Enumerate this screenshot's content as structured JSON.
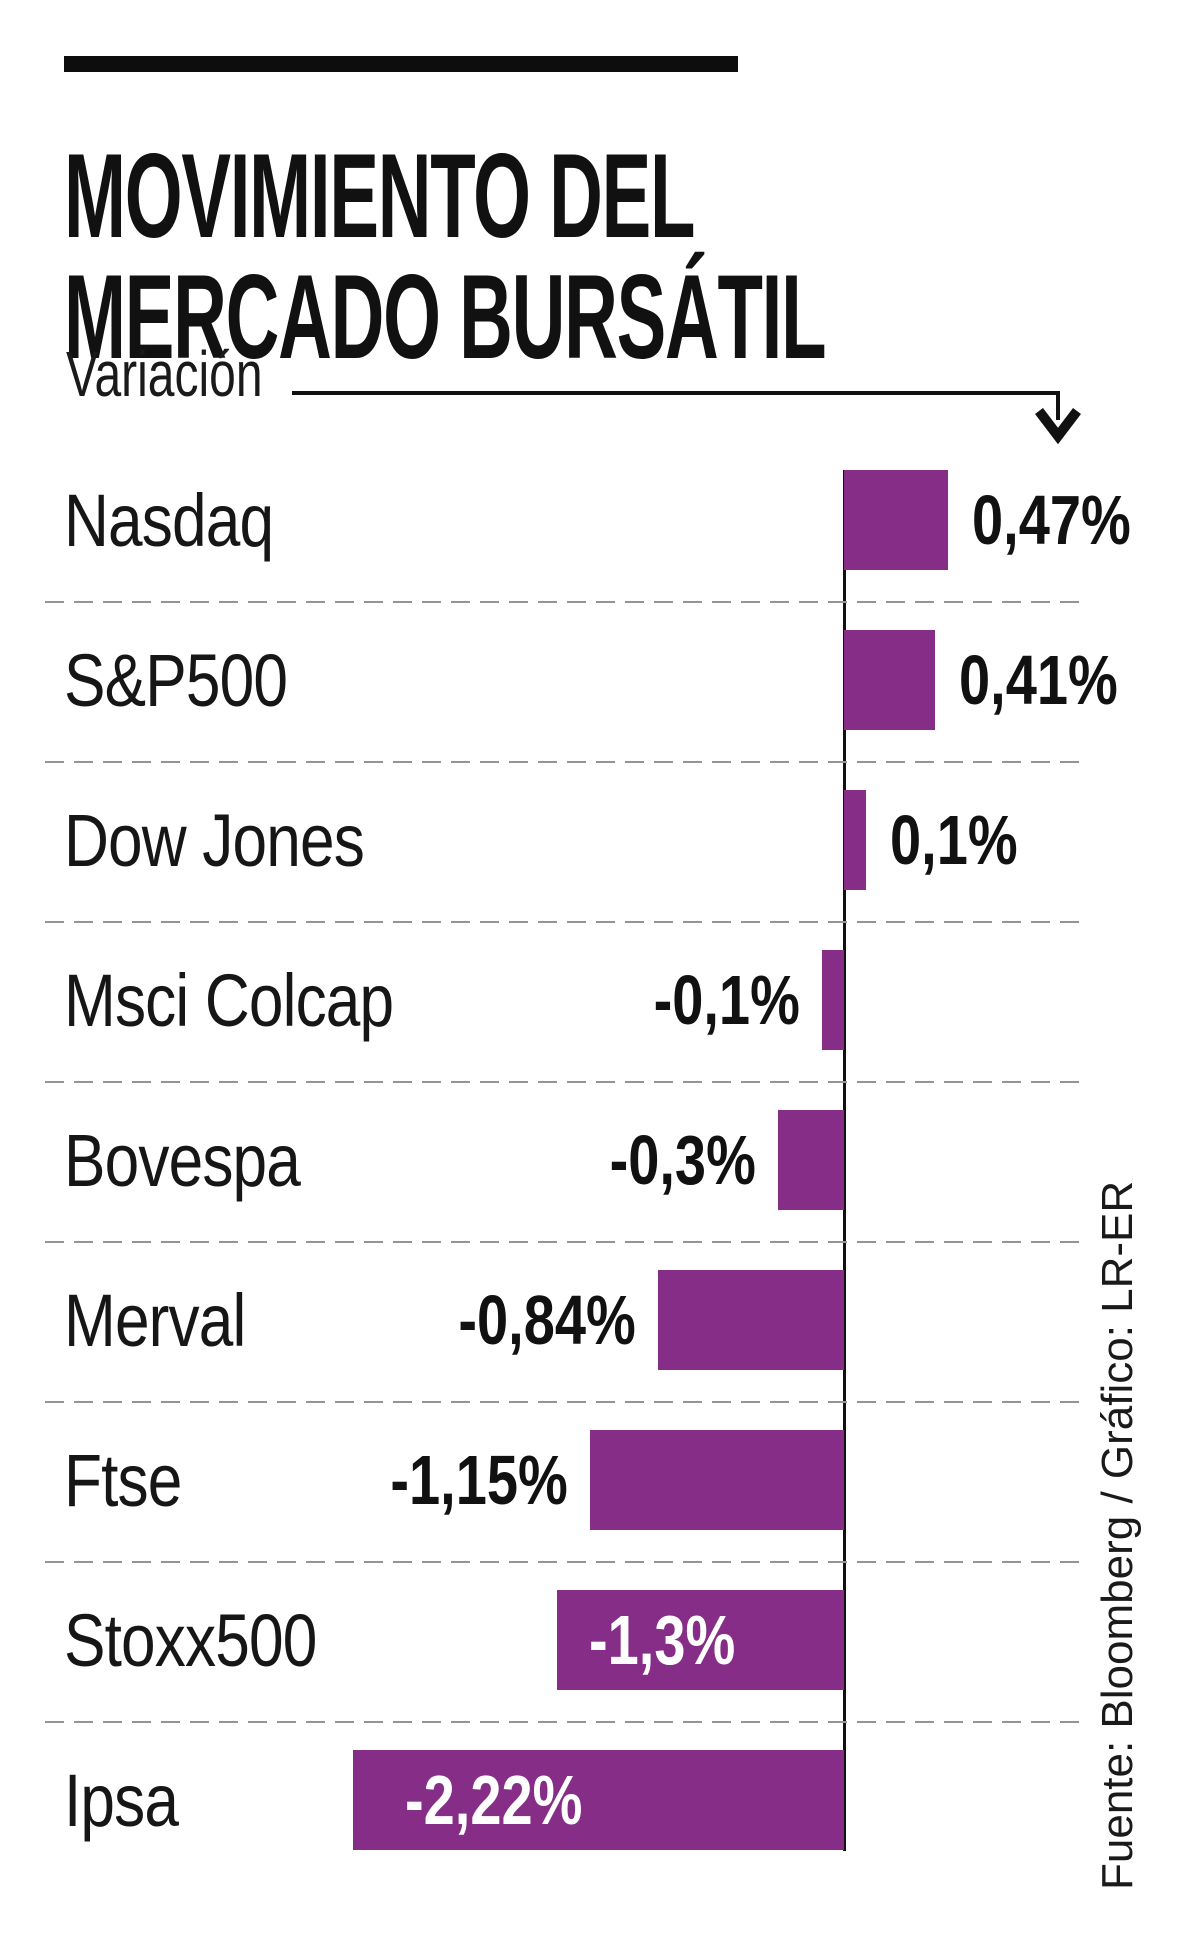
{
  "header": {
    "title_line1": "MOVIMIENTO DEL",
    "title_line2": "MERCADO BURSÁTIL"
  },
  "axis": {
    "label": "Variación"
  },
  "rows": [
    {
      "label": "Nasdaq",
      "value": 0.47,
      "value_label": "0,47%",
      "label_inside": false
    },
    {
      "label": "S&P500",
      "value": 0.41,
      "value_label": "0,41%",
      "label_inside": false
    },
    {
      "label": "Dow Jones",
      "value": 0.1,
      "value_label": "0,1%",
      "label_inside": false
    },
    {
      "label": "Msci Colcap",
      "value": -0.1,
      "value_label": "-0,1%",
      "label_inside": false
    },
    {
      "label": "Bovespa",
      "value": -0.3,
      "value_label": "-0,3%",
      "label_inside": false
    },
    {
      "label": "Merval",
      "value": -0.84,
      "value_label": "-0,84%",
      "label_inside": false
    },
    {
      "label": "Ftse",
      "value": -1.15,
      "value_label": "-1,15%",
      "label_inside": false
    },
    {
      "label": "Stoxx500",
      "value": -1.3,
      "value_label": "-1,3%",
      "label_inside": true
    },
    {
      "label": "Ipsa",
      "value": -2.22,
      "value_label": "-2,22%",
      "label_inside": true
    }
  ],
  "footer": {
    "source": "Fuente: Bloomberg / Gráfico: LR-ER"
  },
  "colors": {
    "bar": "#862d87",
    "axis": "#111111",
    "separator": "#949494",
    "text": "#131313",
    "value_inside_text": "#ffffff"
  },
  "chart_data": {
    "type": "bar",
    "orientation": "horizontal",
    "title": "MOVIMIENTO DEL MERCADO BURSÁTIL",
    "xlabel": "Variación",
    "categories": [
      "Nasdaq",
      "S&P500",
      "Dow Jones",
      "Msci Colcap",
      "Bovespa",
      "Merval",
      "Ftse",
      "Stoxx500",
      "Ipsa"
    ],
    "values": [
      0.47,
      0.41,
      0.1,
      -0.1,
      -0.3,
      -0.84,
      -1.15,
      -1.3,
      -2.22
    ],
    "value_labels": [
      "0,47%",
      "0,41%",
      "0,1%",
      "-0,1%",
      "-0,3%",
      "-0,84%",
      "-1,15%",
      "-1,3%",
      "-2,22%"
    ],
    "unit": "%",
    "xlim": [
      -2.6,
      1.0
    ],
    "grid": "dashed horizontal separators between categories",
    "bar_color": "#862d87",
    "source": "Fuente: Bloomberg / Gráfico: LR-ER"
  }
}
